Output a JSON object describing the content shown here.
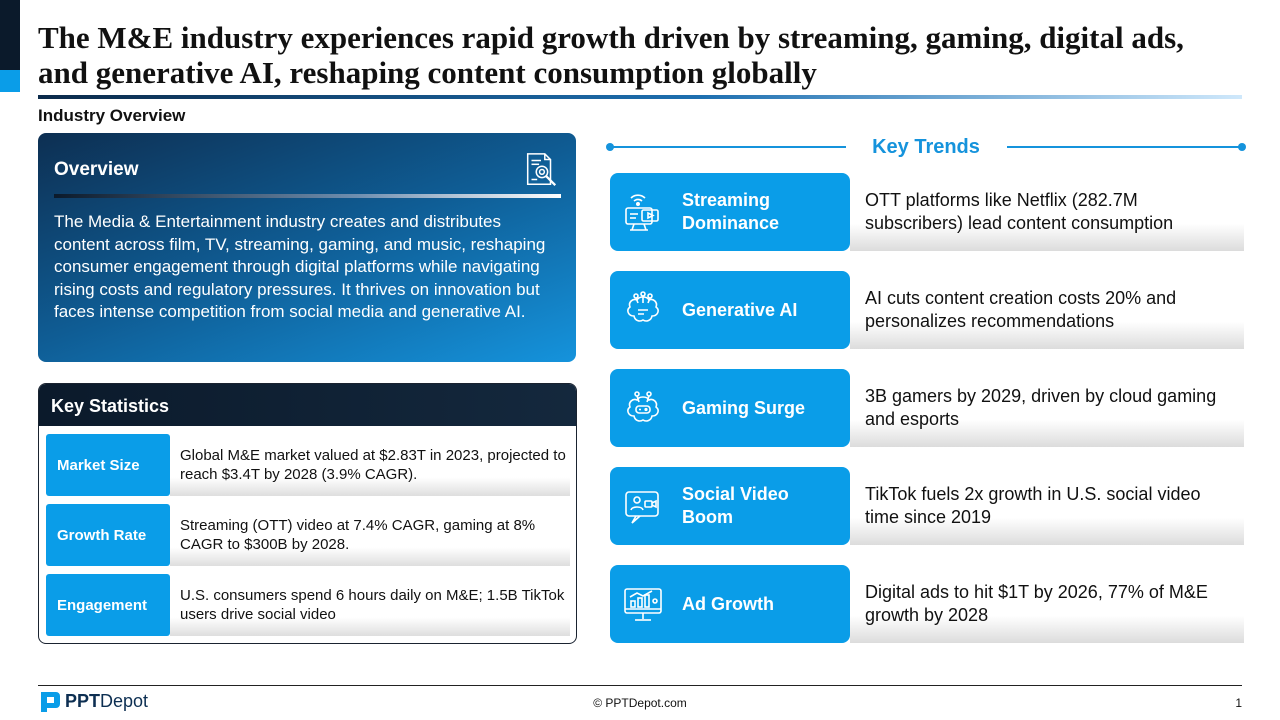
{
  "title": "The M&E industry experiences rapid growth driven by streaming, gaming, digital ads, and generative AI, reshaping content consumption globally",
  "section_label": "Industry Overview",
  "overview": {
    "title": "Overview",
    "icon": "document-search-icon",
    "text": "The Media & Entertainment industry creates and distributes content across film, TV, streaming, gaming, and music, reshaping consumer engagement through digital platforms while navigating rising costs and regulatory pressures. It thrives on innovation but faces intense competition from social media and generative AI."
  },
  "key_statistics": {
    "title": "Key Statistics",
    "rows": [
      {
        "label": "Market Size",
        "text": "Global M&E market valued at $2.83T in 2023, projected to reach $3.4T by 2028 (3.9% CAGR)."
      },
      {
        "label": "Growth Rate",
        "text": "Streaming (OTT) video at 7.4% CAGR, gaming at 8% CAGR to $300B by 2028."
      },
      {
        "label": "Engagement",
        "text": "U.S. consumers spend 6 hours daily on M&E; 1.5B TikTok users drive social video"
      }
    ]
  },
  "key_trends": {
    "title": "Key Trends",
    "items": [
      {
        "label": "Streaming Dominance",
        "icon": "streaming-tv-icon",
        "text": "OTT platforms like Netflix (282.7M subscribers) lead content consumption"
      },
      {
        "label": "Generative AI",
        "icon": "ai-brain-icon",
        "text": "AI cuts content creation costs 20% and personalizes recommendations"
      },
      {
        "label": "Gaming Surge",
        "icon": "gaming-brain-icon",
        "text": "3B gamers by 2029, driven by cloud gaming and esports"
      },
      {
        "label": "Social Video Boom",
        "icon": "video-chat-icon",
        "text": "TikTok fuels 2x growth in U.S. social video time since 2019"
      },
      {
        "label": "Ad Growth",
        "icon": "analytics-monitor-icon",
        "text": "Digital ads to hit $1T by 2026, 77% of M&E growth by 2028"
      }
    ]
  },
  "footer": {
    "logo_bold": "PPT",
    "logo_regular": "Depot",
    "copyright": "© PPTDepot.com",
    "page_number": "1"
  },
  "colors": {
    "accent": "#0a9de8",
    "navy": "#0b1a2b"
  }
}
